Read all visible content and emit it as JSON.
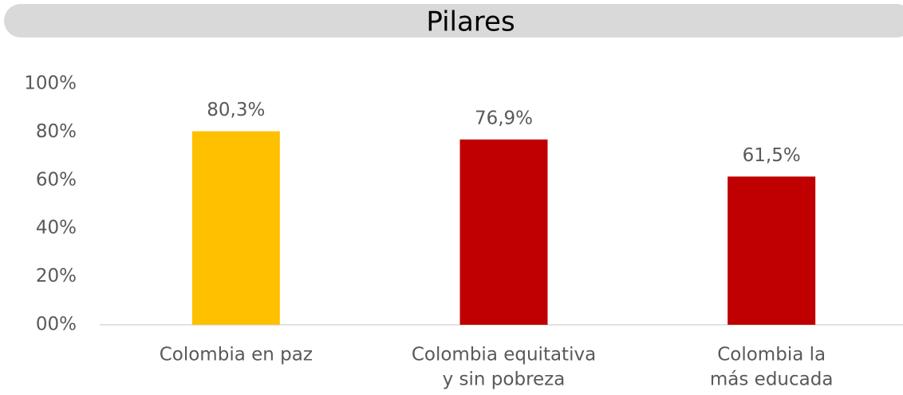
{
  "chart_data": {
    "type": "bar",
    "title": "Pilares",
    "categories": [
      [
        "Colombia en paz"
      ],
      [
        "Colombia equitativa",
        "y sin pobreza"
      ],
      [
        "Colombia la",
        "más educada"
      ]
    ],
    "values": [
      80.3,
      76.9,
      61.5
    ],
    "value_labels": [
      "80,3%",
      "76,9%",
      "61,5%"
    ],
    "colors": [
      "#ffc000",
      "#c00000",
      "#c00000"
    ],
    "ylim": [
      0,
      100
    ],
    "yticks": [
      {
        "value": 0,
        "label": "00%"
      },
      {
        "value": 20,
        "label": "20%"
      },
      {
        "value": 40,
        "label": "40%"
      },
      {
        "value": 60,
        "label": "60%"
      },
      {
        "value": 80,
        "label": "80%"
      },
      {
        "value": 100,
        "label": "100%"
      }
    ],
    "grid": false
  }
}
